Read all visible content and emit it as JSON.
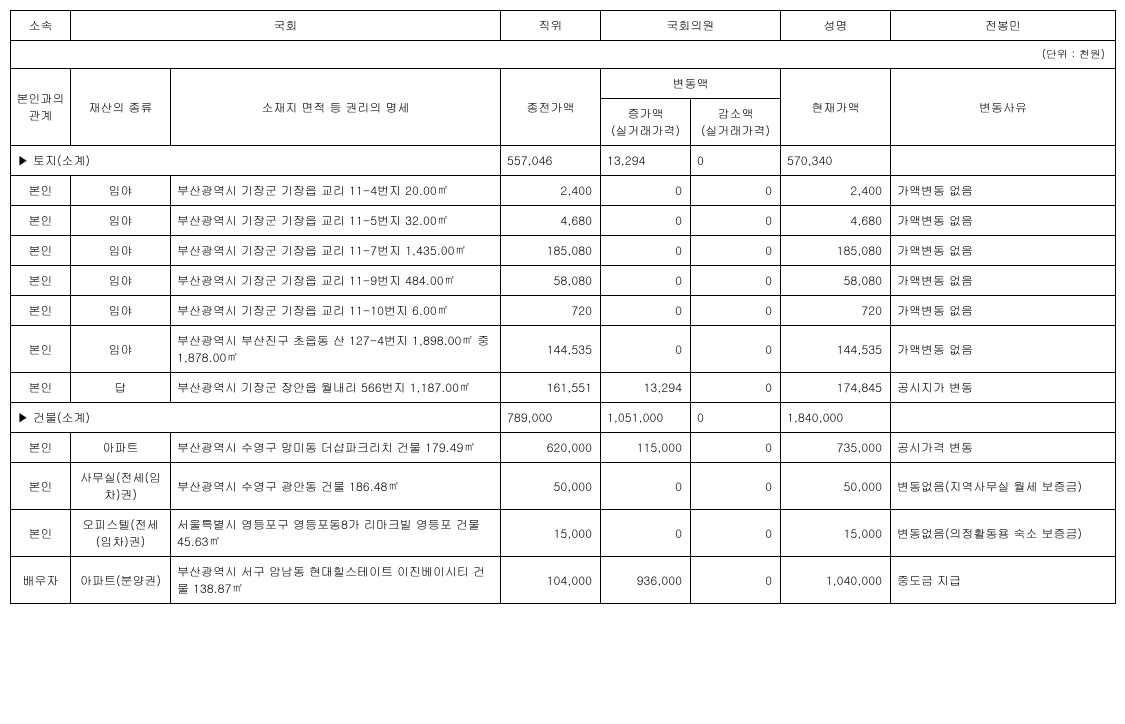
{
  "header": {
    "affiliation_label": "소속",
    "affiliation_value": "국회",
    "position_label": "직위",
    "position_value": "국회의원",
    "name_label": "성명",
    "name_value": "전봉민"
  },
  "unit_text": "(단위 : 천원)",
  "columns": {
    "relation": "본인과의\n관계",
    "asset_type": "재산의 종류",
    "details": "소재지 면적 등 권리의 명세",
    "prev_amount": "종전가액",
    "change": "변동액",
    "increase": "증가액\n(실거래가격)",
    "decrease": "감소액\n(실거래가격)",
    "current_amount": "현재가액",
    "reason": "변동사유"
  },
  "sections": [
    {
      "title": "▶ 토지(소계)",
      "prev": "557,046",
      "inc": "13,294",
      "dec": "0",
      "cur": "570,340",
      "reason": "",
      "rows": [
        {
          "rel": "본인",
          "type": "임야",
          "detail": "부산광역시 기장군 기장읍 교리 11-4번지 20.00㎡",
          "prev": "2,400",
          "inc": "0",
          "dec": "0",
          "cur": "2,400",
          "reason": "가액변동 없음"
        },
        {
          "rel": "본인",
          "type": "임야",
          "detail": "부산광역시 기장군 기장읍 교리 11-5번지 32.00㎡",
          "prev": "4,680",
          "inc": "0",
          "dec": "0",
          "cur": "4,680",
          "reason": "가액변동 없음"
        },
        {
          "rel": "본인",
          "type": "임야",
          "detail": "부산광역시 기장군 기장읍 교리 11-7번지 1,435.00㎡",
          "prev": "185,080",
          "inc": "0",
          "dec": "0",
          "cur": "185,080",
          "reason": "가액변동 없음"
        },
        {
          "rel": "본인",
          "type": "임야",
          "detail": "부산광역시 기장군 기장읍 교리 11-9번지 484.00㎡",
          "prev": "58,080",
          "inc": "0",
          "dec": "0",
          "cur": "58,080",
          "reason": "가액변동 없음"
        },
        {
          "rel": "본인",
          "type": "임야",
          "detail": "부산광역시 기장군 기장읍 교리 11-10번지 6.00㎡",
          "prev": "720",
          "inc": "0",
          "dec": "0",
          "cur": "720",
          "reason": "가액변동 없음"
        },
        {
          "rel": "본인",
          "type": "임야",
          "detail": "부산광역시 부산진구 초읍동 산 127-4번지 1,898.00㎡ 중 1,878.00㎡",
          "prev": "144,535",
          "inc": "0",
          "dec": "0",
          "cur": "144,535",
          "reason": "가액변동 없음"
        },
        {
          "rel": "본인",
          "type": "답",
          "detail": "부산광역시 기장군 장안읍 월내리 566번지 1,187.00㎡",
          "prev": "161,551",
          "inc": "13,294",
          "dec": "0",
          "cur": "174,845",
          "reason": "공시지가 변동"
        }
      ]
    },
    {
      "title": "▶ 건물(소계)",
      "prev": "789,000",
      "inc": "1,051,000",
      "dec": "0",
      "cur": "1,840,000",
      "reason": "",
      "rows": [
        {
          "rel": "본인",
          "type": "아파트",
          "detail": "부산광역시 수영구 망미동 더샵파크리치 건물 179.49㎡",
          "prev": "620,000",
          "inc": "115,000",
          "dec": "0",
          "cur": "735,000",
          "reason": "공시가격 변동"
        },
        {
          "rel": "본인",
          "type": "사무실(전세(임차)권)",
          "detail": "부산광역시 수영구 광안동 건물 186.48㎡",
          "prev": "50,000",
          "inc": "0",
          "dec": "0",
          "cur": "50,000",
          "reason": "변동없음(지역사무실 월세 보증금)"
        },
        {
          "rel": "본인",
          "type": "오피스텔(전세(임차)권)",
          "detail": "서울특별시 영등포구 영등포동8가 리마크빌 영등포 건물 45.63㎡",
          "prev": "15,000",
          "inc": "0",
          "dec": "0",
          "cur": "15,000",
          "reason": "변동없음(의정활동용 숙소 보증금)"
        },
        {
          "rel": "배우자",
          "type": "아파트(분양권)",
          "detail": "부산광역시 서구 암남동 현대힐스테이트 이진베이시티 건물 138.87㎡",
          "prev": "104,000",
          "inc": "936,000",
          "dec": "0",
          "cur": "1,040,000",
          "reason": "중도금 지급"
        }
      ]
    }
  ]
}
